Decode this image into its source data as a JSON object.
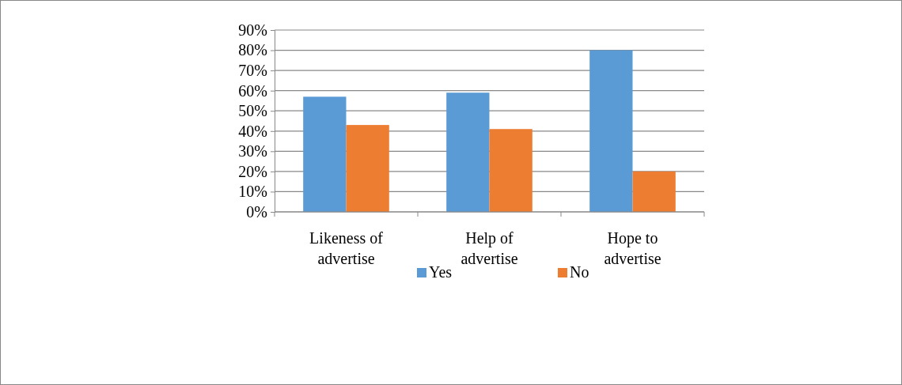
{
  "chart_data": {
    "type": "bar",
    "categories": [
      "Likeness of advertise",
      "Help of advertise",
      "Hope to advertise"
    ],
    "series": [
      {
        "name": "Yes",
        "color": "#5b9bd5",
        "values": [
          57,
          59,
          80
        ]
      },
      {
        "name": "No",
        "color": "#ed7d31",
        "values": [
          43,
          41,
          20
        ]
      }
    ],
    "ylim": [
      0,
      90
    ],
    "yticks": [
      {
        "value": 0,
        "label": "0%"
      },
      {
        "value": 10,
        "label": "10%"
      },
      {
        "value": 20,
        "label": "20%"
      },
      {
        "value": 30,
        "label": "30%"
      },
      {
        "value": 40,
        "label": "40%"
      },
      {
        "value": 50,
        "label": "50%"
      },
      {
        "value": 60,
        "label": "60%"
      },
      {
        "value": 70,
        "label": "70%"
      },
      {
        "value": 80,
        "label": "80%"
      },
      {
        "value": 90,
        "label": "90%"
      }
    ],
    "grid": "y",
    "legend": "bottom"
  }
}
